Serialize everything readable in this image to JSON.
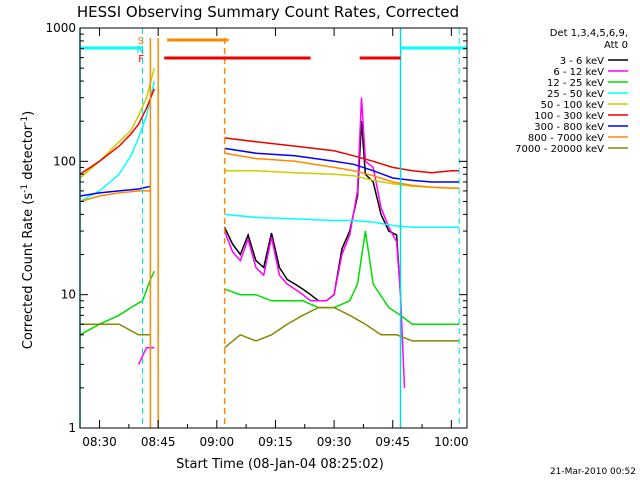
{
  "chart_data": {
    "type": "line",
    "title": "HESSI Observing Summary Count Rates, Corrected",
    "xlabel": "Start Time (08-Jan-04 08:25:02)",
    "ylabel_main": "Corrected Count Rate (s",
    "ylabel_sup": "-1",
    "ylabel_mid": " detector",
    "ylabel_sup2": "-1",
    "ylabel_end": ")",
    "yscale": "log",
    "ylim": [
      1,
      1000
    ],
    "xlim": [
      "08:25",
      "10:04"
    ],
    "xticks": [
      "08:30",
      "08:45",
      "09:00",
      "09:15",
      "09:30",
      "09:45",
      "10:00"
    ],
    "yticks": [
      "1",
      "10",
      "100",
      "1000"
    ],
    "footer": "21-Mar-2010 00:52",
    "legend": {
      "header": [
        "Det 1,3,4,5,6,9,",
        "Att 0"
      ],
      "placement": "right",
      "entries": [
        {
          "label": "3 - 6 keV",
          "color": "#000000"
        },
        {
          "label": "6 - 12 keV",
          "color": "#ff00ff"
        },
        {
          "label": "12 - 25 keV",
          "color": "#00dd00"
        },
        {
          "label": "25 - 50 keV",
          "color": "#00ffff"
        },
        {
          "label": "50 - 100 keV",
          "color": "#cccc00"
        },
        {
          "label": "100 - 300 keV",
          "color": "#ee0000"
        },
        {
          "label": "300 - 800 keV",
          "color": "#0000ff"
        },
        {
          "label": "800 - 7000 keV",
          "color": "#ff8800"
        },
        {
          "label": "7000 - 20000 keV",
          "color": "#888800"
        }
      ]
    },
    "flags": [
      {
        "label": "S",
        "color": "#ff8800",
        "start": "08:45",
        "end": "09:03"
      },
      {
        "label": "N",
        "color": "#00cccc",
        "start": "08:45",
        "end": "08:45"
      },
      {
        "label": "F",
        "color": "#ee0000",
        "segments": [
          [
            "08:45",
            "09:24"
          ],
          [
            "09:35",
            "09:47"
          ]
        ]
      }
    ],
    "night_markers": [
      "08:25",
      "08:41",
      "09:47",
      "10:02"
    ],
    "saa_markers": [
      "08:43",
      "08:45",
      "09:02"
    ],
    "series": [
      {
        "name": "3 - 6 keV",
        "color": "#000000",
        "x": [
          "09:02",
          "09:04",
          "09:06",
          "09:08",
          "09:10",
          "09:12",
          "09:14",
          "09:16",
          "09:18",
          "09:20",
          "09:22",
          "09:24",
          "09:26",
          "09:28",
          "09:30",
          "09:32",
          "09:34",
          "09:36",
          "09:37",
          "09:38",
          "09:40",
          "09:42",
          "09:44",
          "09:46",
          "09:47"
        ],
        "y": [
          32,
          24,
          20,
          28,
          18,
          16,
          29,
          16,
          13,
          12,
          11,
          10,
          9,
          9,
          10,
          22,
          30,
          55,
          200,
          80,
          70,
          40,
          30,
          28,
          10
        ]
      },
      {
        "name": "6 - 12 keV",
        "color": "#ff00ff",
        "x": [
          "08:40",
          "08:42",
          "08:44",
          "09:02",
          "09:04",
          "09:06",
          "09:08",
          "09:10",
          "09:12",
          "09:14",
          "09:16",
          "09:18",
          "09:20",
          "09:22",
          "09:24",
          "09:26",
          "09:28",
          "09:30",
          "09:32",
          "09:34",
          "09:36",
          "09:37",
          "09:38",
          "09:40",
          "09:42",
          "09:44",
          "09:46",
          "09:47",
          "09:48"
        ],
        "y": [
          3,
          4,
          4,
          30,
          21,
          18,
          26,
          16,
          14,
          27,
          14,
          12,
          11,
          10,
          9,
          9,
          9,
          10,
          20,
          28,
          60,
          300,
          100,
          90,
          45,
          32,
          25,
          10,
          2
        ]
      },
      {
        "name": "12 - 25 keV",
        "color": "#00dd00",
        "x": [
          "08:25",
          "08:30",
          "08:35",
          "08:38",
          "08:41",
          "08:43",
          "08:44",
          "09:02",
          "09:06",
          "09:10",
          "09:14",
          "09:18",
          "09:22",
          "09:26",
          "09:30",
          "09:34",
          "09:36",
          "09:38",
          "09:40",
          "09:44",
          "09:47",
          "09:50",
          "09:55",
          "10:00",
          "10:02"
        ],
        "y": [
          5,
          6,
          7,
          8,
          9,
          13,
          15,
          11,
          10,
          10,
          9,
          9,
          9,
          8,
          8,
          9,
          12,
          30,
          12,
          8,
          7,
          6,
          6,
          6,
          6
        ]
      },
      {
        "name": "25 - 50 keV",
        "color": "#00ffff",
        "x": [
          "08:25",
          "08:30",
          "08:35",
          "08:38",
          "08:40",
          "08:42",
          "08:44",
          "09:02",
          "09:10",
          "09:20",
          "09:30",
          "09:35",
          "09:40",
          "09:45",
          "09:50",
          "09:55",
          "10:00",
          "10:02"
        ],
        "y": [
          50,
          60,
          80,
          110,
          150,
          220,
          400,
          40,
          38,
          37,
          36,
          36,
          35,
          33,
          32,
          32,
          32,
          32
        ]
      },
      {
        "name": "50 - 100 keV",
        "color": "#cccc00",
        "x": [
          "08:25",
          "08:30",
          "08:35",
          "08:38",
          "08:40",
          "08:42",
          "08:44",
          "09:02",
          "09:10",
          "09:20",
          "09:30",
          "09:35",
          "09:40",
          "09:45",
          "09:50",
          "09:55",
          "10:00",
          "10:02"
        ],
        "y": [
          75,
          100,
          140,
          170,
          220,
          300,
          500,
          85,
          85,
          82,
          80,
          78,
          72,
          68,
          65,
          64,
          63,
          63
        ]
      },
      {
        "name": "100 - 300 keV",
        "color": "#ee0000",
        "x": [
          "08:25",
          "08:30",
          "08:35",
          "08:38",
          "08:40",
          "08:42",
          "08:44",
          "09:02",
          "09:10",
          "09:20",
          "09:30",
          "09:35",
          "09:40",
          "09:45",
          "09:50",
          "09:55",
          "10:00",
          "10:02"
        ],
        "y": [
          80,
          100,
          130,
          160,
          190,
          250,
          350,
          150,
          140,
          130,
          120,
          110,
          100,
          90,
          85,
          82,
          85,
          85
        ]
      },
      {
        "name": "300 - 800 keV",
        "color": "#0000ff",
        "x": [
          "08:25",
          "08:30",
          "08:35",
          "08:40",
          "08:43",
          "09:02",
          "09:10",
          "09:20",
          "09:30",
          "09:35",
          "09:40",
          "09:45",
          "09:50",
          "09:55",
          "10:00",
          "10:02"
        ],
        "y": [
          55,
          58,
          60,
          62,
          65,
          125,
          115,
          110,
          100,
          95,
          85,
          75,
          72,
          70,
          70,
          70
        ]
      },
      {
        "name": "800 - 7000 keV",
        "color": "#ff8800",
        "x": [
          "08:25",
          "08:30",
          "08:35",
          "08:40",
          "08:43",
          "09:02",
          "09:10",
          "09:20",
          "09:30",
          "09:35",
          "09:40",
          "09:45",
          "09:50",
          "09:55",
          "10:00",
          "10:02"
        ],
        "y": [
          50,
          55,
          58,
          60,
          60,
          115,
          105,
          100,
          90,
          85,
          78,
          70,
          66,
          64,
          63,
          63
        ]
      },
      {
        "name": "7000 - 20000 keV",
        "color": "#888800",
        "x": [
          "08:25",
          "08:30",
          "08:35",
          "08:40",
          "08:43",
          "09:02",
          "09:06",
          "09:10",
          "09:14",
          "09:18",
          "09:22",
          "09:26",
          "09:30",
          "09:34",
          "09:38",
          "09:42",
          "09:46",
          "09:50",
          "09:55",
          "10:00",
          "10:02"
        ],
        "y": [
          6,
          6,
          6,
          5,
          5,
          4,
          5,
          4.5,
          5,
          6,
          7,
          8,
          8,
          7,
          6,
          5,
          5,
          4.5,
          4.5,
          4.5,
          4.5
        ]
      }
    ]
  }
}
